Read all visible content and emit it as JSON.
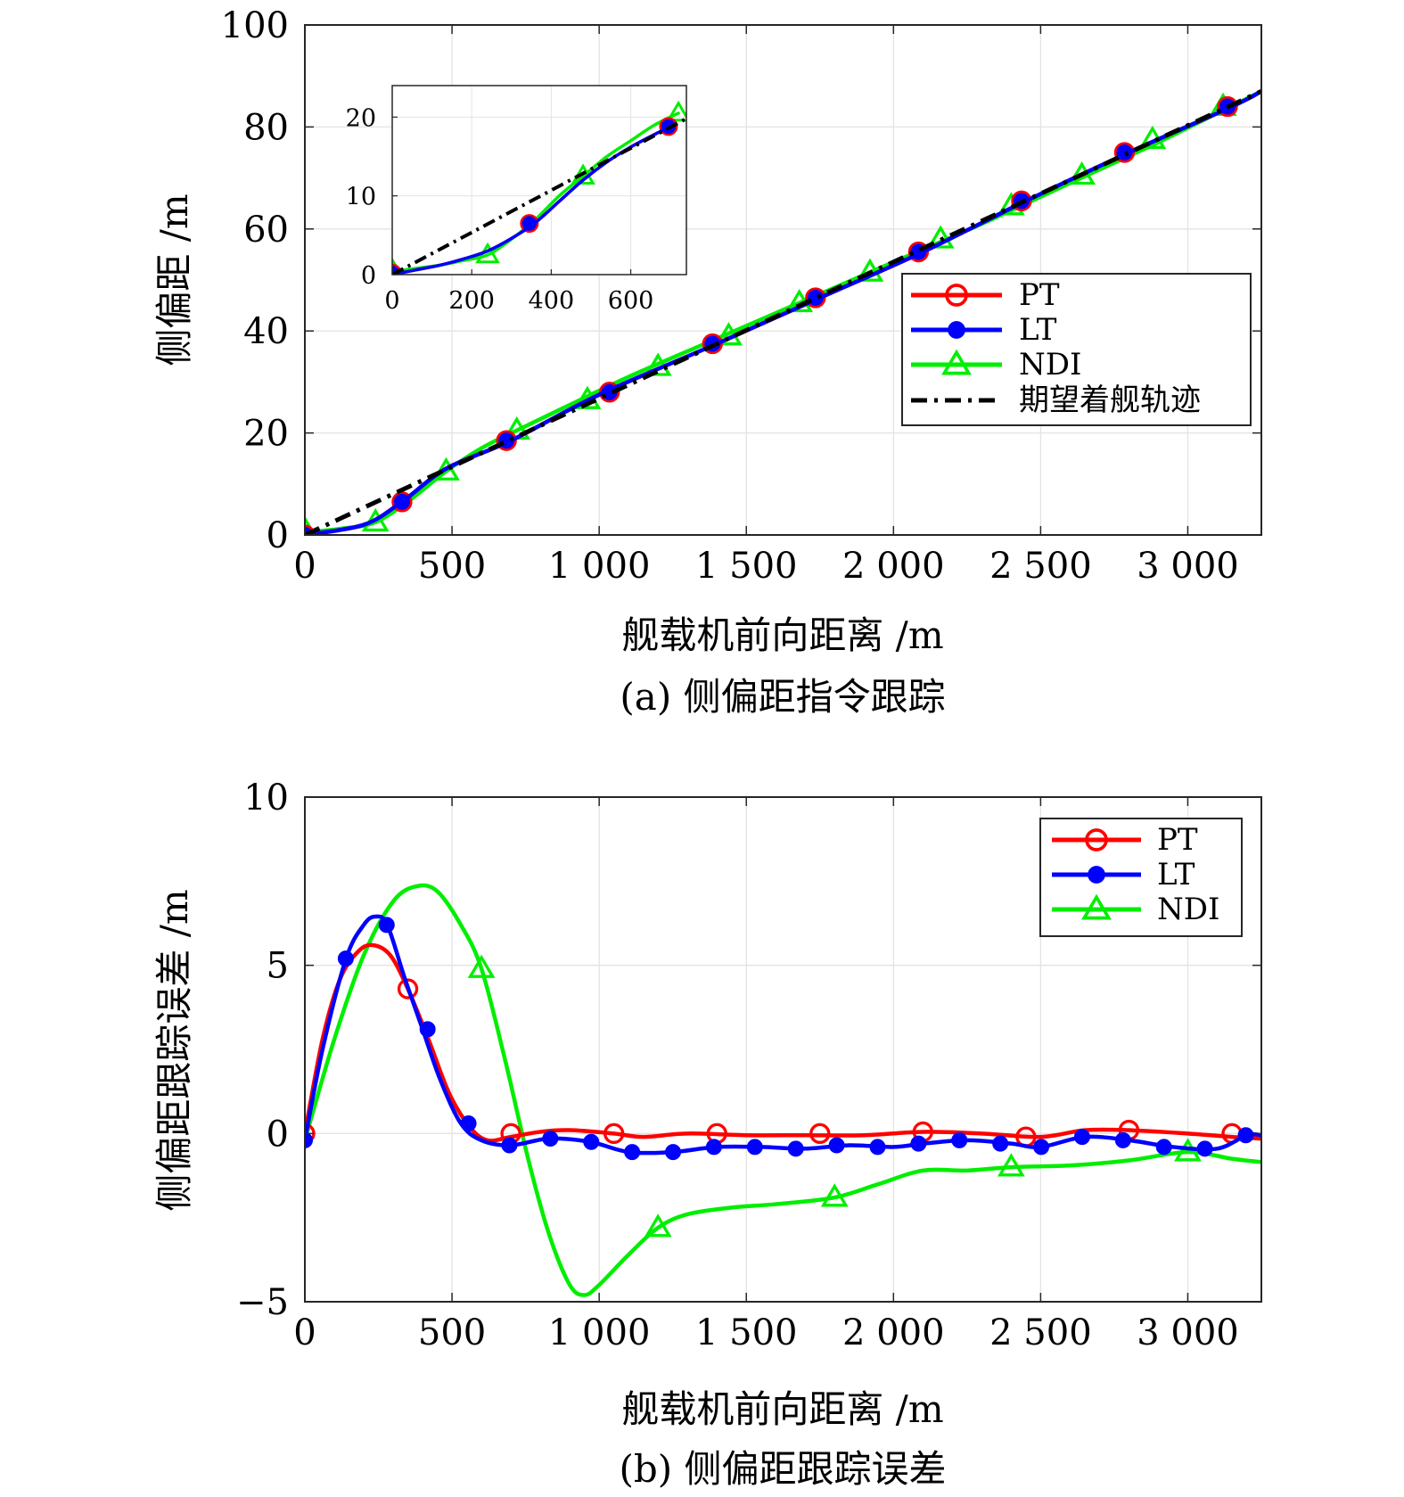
{
  "chart_data": [
    {
      "type": "line",
      "caption": "(a) 侧偏距指令跟踪",
      "xlabel": "舰载机前向距离 /m",
      "ylabel": "侧偏距 /m",
      "xlim": [
        0,
        3250
      ],
      "ylim": [
        0,
        100
      ],
      "xticks": [
        0,
        500,
        1000,
        1500,
        2000,
        2500,
        3000
      ],
      "xtick_labels": [
        "0",
        "500",
        "1 000",
        "1 500",
        "2 000",
        "2 500",
        "3 000"
      ],
      "yticks": [
        0,
        20,
        40,
        60,
        80,
        100
      ],
      "ytick_labels": [
        "0",
        "20",
        "40",
        "60",
        "80",
        "100"
      ],
      "grid": true,
      "legend_position": "lower-right",
      "series": [
        {
          "name": "PT",
          "color": "#ff0000",
          "marker": "circle",
          "x": [
            0,
            200,
            330,
            480,
            700,
            1000,
            1400,
            1750,
            2100,
            2450,
            2800,
            3150,
            3250
          ],
          "y": [
            0,
            2,
            6.5,
            13,
            18.5,
            27.5,
            37.5,
            46.5,
            55.5,
            65.5,
            75,
            84,
            87
          ],
          "markers_x": [
            0,
            330,
            685,
            1035,
            1385,
            1735,
            2085,
            2435,
            2785,
            3135
          ],
          "markers_y": [
            0,
            6.5,
            18.5,
            28,
            37.5,
            46.5,
            55.5,
            65.5,
            75,
            84
          ]
        },
        {
          "name": "LT",
          "color": "#0000ff",
          "marker": "dot",
          "x": [
            0,
            200,
            330,
            480,
            700,
            1000,
            1400,
            1750,
            2100,
            2450,
            2800,
            3150,
            3250
          ],
          "y": [
            0,
            2,
            6.5,
            13,
            18.5,
            27.5,
            37.5,
            46.5,
            55.5,
            65.5,
            75,
            84,
            87
          ],
          "markers_x": [
            0,
            330,
            685,
            1035,
            1385,
            1735,
            2085,
            2435,
            2785,
            3135
          ],
          "markers_y": [
            0,
            6.5,
            18.5,
            28,
            37.5,
            46.5,
            55.5,
            65.5,
            75,
            84
          ]
        },
        {
          "name": "NDI",
          "color": "#00ee00",
          "marker": "triangle",
          "x": [
            0,
            120,
            240,
            360,
            480,
            600,
            720,
            900,
            1100,
            1400,
            1700,
            2000,
            2300,
            2600,
            2900,
            3250
          ],
          "y": [
            0.5,
            1.2,
            2.5,
            7,
            12.5,
            17,
            20.5,
            25.5,
            31,
            38.5,
            46,
            53.5,
            61,
            69,
            77,
            87
          ],
          "markers_x": [
            0,
            240,
            480,
            720,
            960,
            1200,
            1440,
            1680,
            1920,
            2160,
            2400,
            2640,
            2880,
            3120
          ],
          "markers_y": [
            1,
            2.5,
            12.5,
            20.5,
            26.5,
            33,
            39,
            45.5,
            51.5,
            58,
            64.5,
            70.5,
            77.5,
            84
          ]
        },
        {
          "name": "期望着舰轨迹",
          "color": "#000000",
          "style": "dashdot",
          "x": [
            0,
            3250
          ],
          "y": [
            0,
            87
          ]
        }
      ],
      "inset": {
        "xlim": [
          0,
          740
        ],
        "ylim": [
          0,
          24
        ],
        "xticks": [
          0,
          200,
          400,
          600
        ],
        "xtick_labels": [
          "0",
          "200",
          "400",
          "600"
        ],
        "yticks": [
          0,
          10,
          20
        ],
        "ytick_labels": [
          "0",
          "10",
          "20"
        ],
        "grid": true
      }
    },
    {
      "type": "line",
      "caption": "(b) 侧偏距跟踪误差",
      "xlabel": "舰载机前向距离 /m",
      "ylabel": "侧偏距跟踪误差 /m",
      "xlim": [
        0,
        3250
      ],
      "ylim": [
        -5,
        10
      ],
      "xticks": [
        0,
        500,
        1000,
        1500,
        2000,
        2500,
        3000
      ],
      "xtick_labels": [
        "0",
        "500",
        "1 000",
        "1 500",
        "2 000",
        "2 500",
        "3 000"
      ],
      "yticks": [
        -5,
        0,
        5,
        10
      ],
      "ytick_labels": [
        "−5",
        "0",
        "5",
        "10"
      ],
      "grid": true,
      "legend_position": "top-right",
      "series": [
        {
          "name": "PT",
          "color": "#ff0000",
          "marker": "circle",
          "x": [
            0,
            60,
            120,
            180,
            230,
            290,
            350,
            420,
            490,
            560,
            620,
            700,
            800,
            900,
            1050,
            1150,
            1300,
            1500,
            1700,
            1900,
            2100,
            2300,
            2500,
            2650,
            2800,
            3000,
            3150,
            3250
          ],
          "y": [
            0,
            2.8,
            4.6,
            5.4,
            5.6,
            5.3,
            4.3,
            2.8,
            1.2,
            0.2,
            -0.2,
            -0.1,
            0.05,
            0.1,
            0,
            -0.1,
            0,
            -0.05,
            -0.05,
            -0.05,
            0.05,
            0,
            -0.1,
            0.1,
            0.1,
            0,
            -0.1,
            -0.15
          ],
          "markers_x": [
            0,
            350,
            700,
            1050,
            1400,
            1750,
            2100,
            2450,
            2800,
            3150
          ],
          "markers_y": [
            0,
            4.3,
            0,
            0,
            0,
            0,
            0.05,
            -0.1,
            0.1,
            0
          ]
        },
        {
          "name": "LT",
          "color": "#0000ff",
          "marker": "dot",
          "x": [
            0,
            60,
            140,
            200,
            240,
            280,
            340,
            400,
            460,
            530,
            600,
            700,
            830,
            970,
            1100,
            1250,
            1400,
            1550,
            1700,
            1850,
            2000,
            2100,
            2250,
            2400,
            2500,
            2650,
            2800,
            2950,
            3100,
            3200,
            3250
          ],
          "y": [
            -0.2,
            2.5,
            5.2,
            6.2,
            6.45,
            6.2,
            4.6,
            3.1,
            1.6,
            0.3,
            -0.2,
            -0.35,
            -0.15,
            -0.25,
            -0.55,
            -0.55,
            -0.4,
            -0.4,
            -0.45,
            -0.35,
            -0.4,
            -0.3,
            -0.2,
            -0.3,
            -0.4,
            -0.1,
            -0.2,
            -0.4,
            -0.45,
            -0.05,
            -0.05
          ],
          "markers_x": [
            0,
            139,
            278,
            417,
            556,
            695,
            834,
            973,
            1112,
            1251,
            1390,
            1529,
            1668,
            1807,
            1946,
            2085,
            2224,
            2363,
            2502,
            2641,
            2780,
            2919,
            3058,
            3197
          ],
          "markers_y": [
            -0.2,
            5.2,
            6.2,
            3.1,
            0.3,
            -0.35,
            -0.15,
            -0.25,
            -0.55,
            -0.55,
            -0.4,
            -0.4,
            -0.45,
            -0.35,
            -0.4,
            -0.3,
            -0.2,
            -0.3,
            -0.4,
            -0.1,
            -0.2,
            -0.4,
            -0.45,
            -0.05
          ]
        },
        {
          "name": "NDI",
          "color": "#00ee00",
          "marker": "triangle",
          "x": [
            0,
            100,
            200,
            300,
            380,
            450,
            530,
            600,
            680,
            760,
            830,
            900,
            950,
            1000,
            1100,
            1200,
            1300,
            1450,
            1600,
            1800,
            1950,
            2100,
            2250,
            2400,
            2600,
            2800,
            3000,
            3150,
            3250
          ],
          "y": [
            -0.2,
            2.8,
            5.3,
            6.9,
            7.35,
            7.2,
            6.2,
            4.9,
            2.2,
            -0.8,
            -3.0,
            -4.5,
            -4.8,
            -4.5,
            -3.6,
            -2.8,
            -2.4,
            -2.2,
            -2.1,
            -1.9,
            -1.5,
            -1.1,
            -1.1,
            -1.0,
            -0.95,
            -0.8,
            -0.55,
            -0.75,
            -0.85
          ],
          "markers_x": [
            600,
            1200,
            1800,
            2400,
            3000
          ],
          "markers_y": [
            4.9,
            -2.8,
            -1.9,
            -1.0,
            -0.55
          ]
        }
      ]
    }
  ]
}
